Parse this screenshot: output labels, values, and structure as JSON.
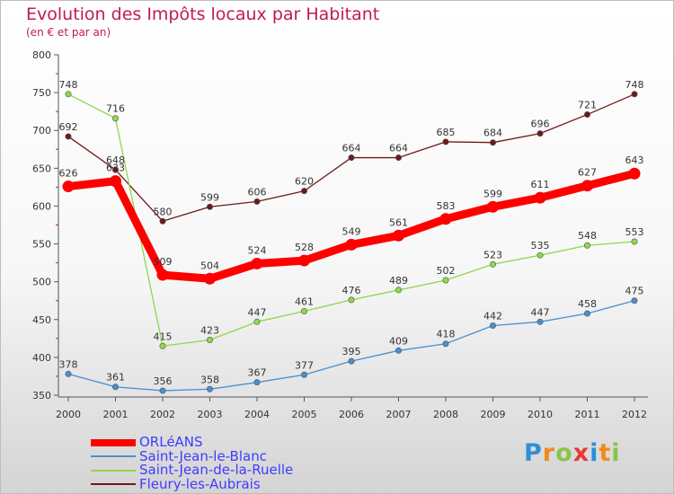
{
  "title": "Evolution des Impôts locaux par Habitant",
  "subtitle": "(en € et par an)",
  "logo": {
    "letters": [
      "P",
      "r",
      "o",
      "x",
      "i",
      "t",
      "i"
    ],
    "colors": [
      "#2e8fd8",
      "#f08a1c",
      "#8bc34a",
      "#e53935",
      "#2e8fd8",
      "#f08a1c",
      "#8bc34a"
    ]
  },
  "chart_data": {
    "type": "line",
    "x": [
      2000,
      2001,
      2002,
      2003,
      2004,
      2005,
      2006,
      2007,
      2008,
      2009,
      2010,
      2011,
      2012
    ],
    "xlabels": [
      "2000",
      "2001",
      "2002",
      "2003",
      "2004",
      "2005",
      "2006",
      "2007",
      "2008",
      "2009",
      "2010",
      "2011",
      "2012"
    ],
    "ylim": [
      350,
      800
    ],
    "yticks": [
      350,
      400,
      450,
      500,
      550,
      600,
      650,
      700,
      750,
      800
    ],
    "grid": false,
    "legend_position": "bottom-left",
    "series": [
      {
        "name": "ORLéANS",
        "color": "#ff0000",
        "style": "thick",
        "values": [
          626,
          633,
          509,
          504,
          524,
          528,
          549,
          561,
          583,
          599,
          611,
          627,
          643
        ]
      },
      {
        "name": "Saint-Jean-le-Blanc",
        "color": "#4a8fcc",
        "style": "thin",
        "values": [
          378,
          361,
          356,
          358,
          367,
          377,
          395,
          409,
          418,
          442,
          447,
          458,
          475
        ]
      },
      {
        "name": "Saint-Jean-de-la-Ruelle",
        "color": "#8ed84a",
        "style": "thin",
        "values": [
          748,
          716,
          415,
          423,
          447,
          461,
          476,
          489,
          502,
          523,
          535,
          548,
          553
        ]
      },
      {
        "name": "Fleury-les-Aubrais",
        "color": "#6b1a1a",
        "style": "thin",
        "values": [
          692,
          648,
          580,
          599,
          606,
          620,
          664,
          664,
          685,
          684,
          696,
          721,
          748
        ]
      }
    ]
  }
}
